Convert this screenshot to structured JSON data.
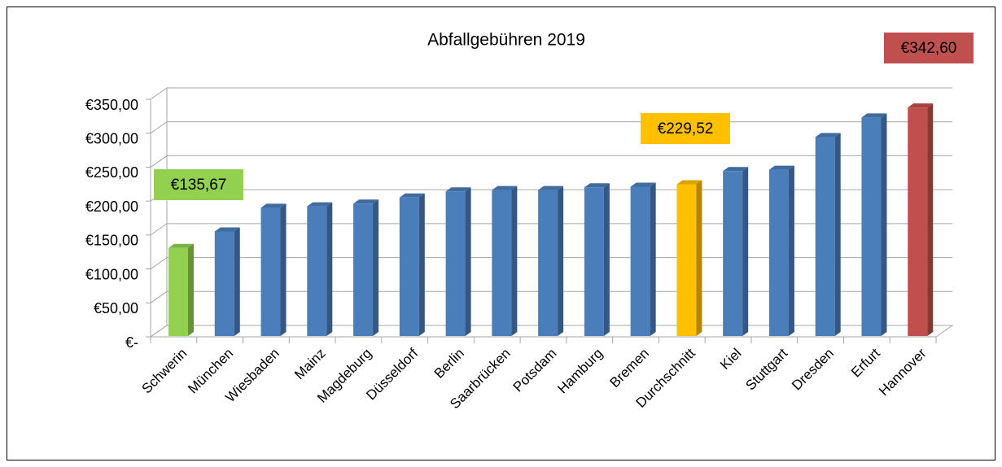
{
  "chart_data": {
    "type": "bar3d",
    "title": "Abfallgebühren 2019",
    "categories": [
      "Schwerin",
      "München",
      "Wiesbaden",
      "Mainz",
      "Magdeburg",
      "Düsseldorf",
      "Berlin",
      "Saarbrücken",
      "Potsdam",
      "Hamburg",
      "Bremen",
      "Durchschnitt",
      "Kiel",
      "Stuttgart",
      "Dresden",
      "Erfurt",
      "Hannover"
    ],
    "values": [
      135.67,
      160,
      195,
      197,
      201,
      210,
      219,
      221,
      221,
      225,
      226,
      229.52,
      249,
      251,
      299,
      328,
      342.6
    ],
    "value_labels": [
      "€135,67",
      null,
      null,
      null,
      null,
      null,
      null,
      null,
      null,
      null,
      null,
      "€229,52",
      null,
      null,
      null,
      null,
      "€342,60"
    ],
    "colors": [
      "#92d050",
      "#4a7ebb",
      "#4a7ebb",
      "#4a7ebb",
      "#4a7ebb",
      "#4a7ebb",
      "#4a7ebb",
      "#4a7ebb",
      "#4a7ebb",
      "#4a7ebb",
      "#4a7ebb",
      "#ffc000",
      "#4a7ebb",
      "#4a7ebb",
      "#4a7ebb",
      "#4a7ebb",
      "#c0504d"
    ],
    "ylim": [
      0,
      350
    ],
    "yticks": [
      {
        "value": 0,
        "label": "€-"
      },
      {
        "value": 50,
        "label": "€50,00"
      },
      {
        "value": 100,
        "label": "€100,00"
      },
      {
        "value": 150,
        "label": "€150,00"
      },
      {
        "value": 200,
        "label": "€200,00"
      },
      {
        "value": 250,
        "label": "€250,00"
      },
      {
        "value": 300,
        "label": "€300,00"
      },
      {
        "value": 350,
        "label": "€350,00"
      }
    ],
    "grid": true
  }
}
